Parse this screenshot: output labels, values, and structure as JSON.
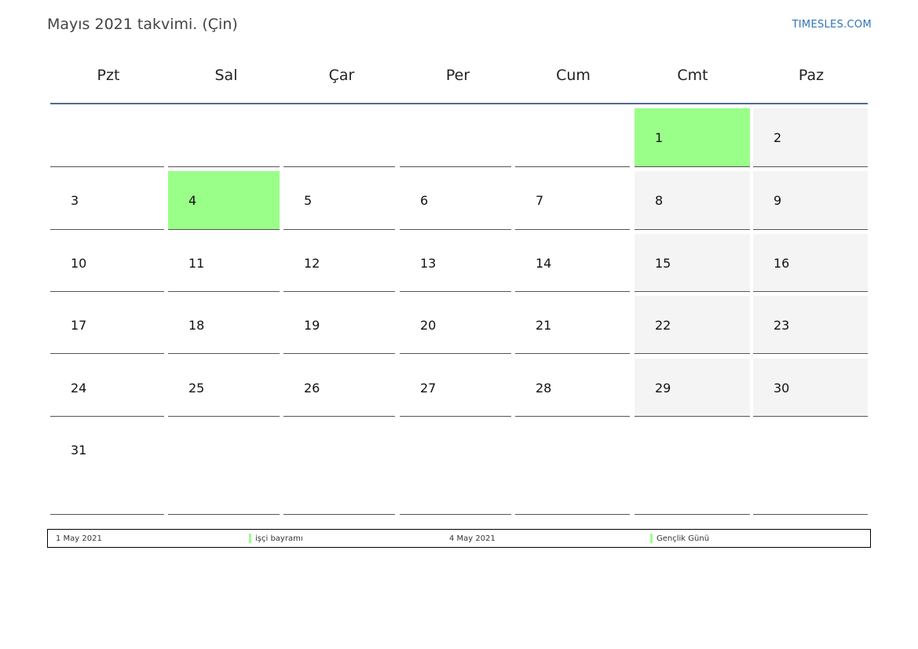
{
  "header": {
    "title": "Mayıs 2021 takvimi. (Çin)",
    "brand": "TIMESLES.COM"
  },
  "weekdays": [
    "Pzt",
    "Sal",
    "Çar",
    "Per",
    "Cum",
    "Cmt",
    "Paz"
  ],
  "weeks": [
    [
      null,
      null,
      null,
      null,
      null,
      "1",
      "2"
    ],
    [
      "3",
      "4",
      "5",
      "6",
      "7",
      "8",
      "9"
    ],
    [
      "10",
      "11",
      "12",
      "13",
      "14",
      "15",
      "16"
    ],
    [
      "17",
      "18",
      "19",
      "20",
      "21",
      "22",
      "23"
    ],
    [
      "24",
      "25",
      "26",
      "27",
      "28",
      "29",
      "30"
    ],
    [
      "31",
      null,
      null,
      null,
      null,
      null,
      null
    ]
  ],
  "holidays": [
    "1",
    "4"
  ],
  "colors": {
    "holiday": "#99ff88",
    "weekend": "#f4f4f4",
    "header_line": "#4e6d94",
    "brand": "#2f74b5"
  },
  "legend": [
    {
      "date": "1 May 2021",
      "name": "işçi bayramı"
    },
    {
      "date": "4 May 2021",
      "name": "Gençlik Günü"
    }
  ]
}
